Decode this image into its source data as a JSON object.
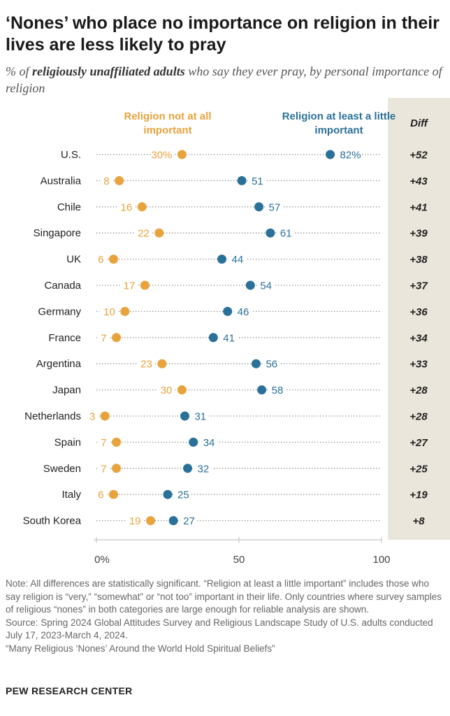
{
  "title": "‘Nones’ who place no importance on religion in their lives are less likely to pray",
  "subtitle_prefix": "% of",
  "subtitle_bold": "religiously unaffiliated adults",
  "subtitle_suffix": "who say they ever pray, by personal importance of religion",
  "legend": {
    "series_a": "Religion not at all important",
    "series_b": "Religion at least a little important"
  },
  "diff_header": "Diff",
  "colors": {
    "series_a": "#e8a33d",
    "series_b": "#2a7199",
    "diff_bg": "#ebe6db"
  },
  "chart_data": {
    "type": "dot",
    "title": "‘Nones’ who place no importance on religion in their lives are less likely to pray",
    "xlim": [
      0,
      100
    ],
    "x_ticks": [
      0,
      50,
      100
    ],
    "x_tick_labels": [
      "0%",
      "50",
      "100"
    ],
    "categories": [
      "U.S.",
      "Australia",
      "Chile",
      "Singapore",
      "UK",
      "Canada",
      "Germany",
      "France",
      "Argentina",
      "Japan",
      "Netherlands",
      "Spain",
      "Sweden",
      "Italy",
      "South Korea"
    ],
    "series": [
      {
        "name": "Religion not at all important",
        "values": [
          30,
          8,
          16,
          22,
          6,
          17,
          10,
          7,
          23,
          30,
          3,
          7,
          7,
          6,
          19
        ]
      },
      {
        "name": "Religion at least a little important",
        "values": [
          82,
          51,
          57,
          61,
          44,
          54,
          46,
          41,
          56,
          58,
          31,
          34,
          32,
          25,
          27
        ]
      }
    ],
    "diff": [
      "+52",
      "+43",
      "+41",
      "+39",
      "+38",
      "+37",
      "+36",
      "+34",
      "+33",
      "+28",
      "+28",
      "+27",
      "+25",
      "+19",
      "+8"
    ],
    "first_row_suffix": "%"
  },
  "notes": [
    "Note: All differences are statistically significant. “Religion at least a little important” includes those who say religion is “very,” “somewhat” or “not too” important in their life. Only countries where survey samples of religious “nones” in both categories are large enough for reliable analysis are shown.",
    "Source: Spring 2024 Global Attitudes Survey and Religious Landscape Study of U.S. adults conducted July 17, 2023-March 4, 2024.",
    "“Many Religious ‘Nones’ Around the World Hold Spiritual Beliefs”"
  ],
  "brand": "PEW RESEARCH CENTER"
}
